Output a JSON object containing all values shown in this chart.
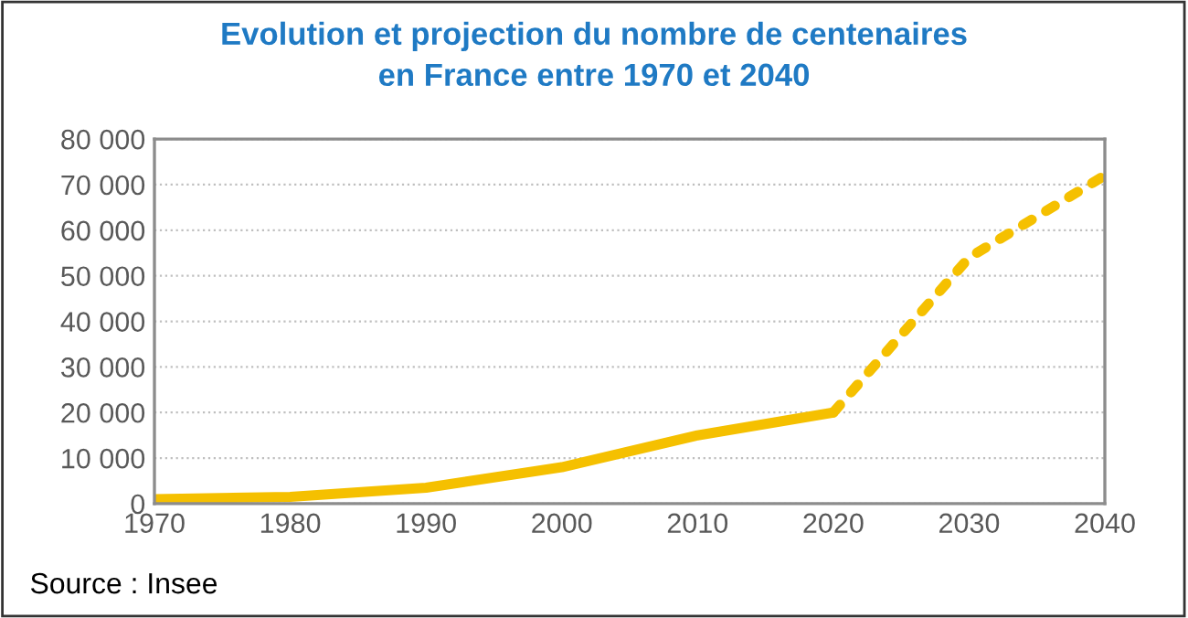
{
  "chart_data": {
    "type": "line",
    "title": "Evolution et projection du nombre de centenaires\nen France entre 1970 et 2040",
    "series": [
      {
        "color": "#f5c000",
        "line_style": "solid",
        "x": [
          1970,
          1980,
          1990,
          2000,
          2010,
          2020
        ],
        "values": [
          1000,
          1500,
          3500,
          8000,
          15000,
          20000
        ]
      },
      {
        "color": "#f5c000",
        "line_style": "dotted",
        "x": [
          2020,
          2030,
          2040
        ],
        "values": [
          20000,
          54000,
          72000
        ]
      }
    ],
    "xlim": [
      1970,
      2040
    ],
    "xticks": [
      1970,
      1980,
      1990,
      2000,
      2010,
      2020,
      2030,
      2040
    ],
    "ylim": [
      0,
      80000
    ],
    "yticks": [
      0,
      {
        "value": 10000,
        "label": "10 000"
      },
      {
        "value": 20000,
        "label": "20 000"
      },
      {
        "value": 30000,
        "label": "30 000"
      },
      {
        "value": 40000,
        "label": "40 000"
      },
      {
        "value": 50000,
        "label": "50 000"
      },
      {
        "value": 60000,
        "label": "60 000"
      },
      {
        "value": 70000,
        "label": "70 000"
      },
      {
        "value": 80000,
        "label": "80 000"
      }
    ],
    "grid": "y",
    "marker": "none",
    "legend": false,
    "annotations": [
      "Source : Insee"
    ]
  }
}
